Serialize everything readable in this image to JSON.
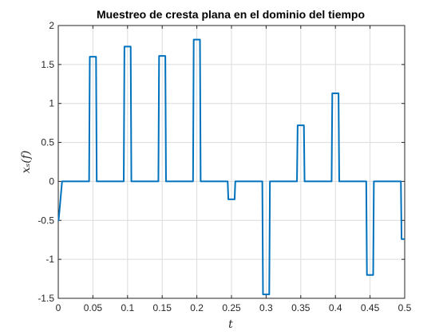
{
  "chart_data": {
    "type": "line",
    "title": "Muestreo de cresta plana en el dominio del tiempo",
    "xlabel": "t",
    "ylabel": "x_s(f)",
    "ylabel_display": "xₛ(f)",
    "xlim": [
      0,
      0.5
    ],
    "ylim": [
      -1.5,
      2
    ],
    "xticks": [
      0,
      0.05,
      0.1,
      0.15,
      0.2,
      0.25,
      0.3,
      0.35,
      0.4,
      0.45,
      0.5
    ],
    "xtick_labels": [
      "0",
      "0.05",
      "0.1",
      "0.15",
      "0.2",
      "0.25",
      "0.3",
      "0.35",
      "0.4",
      "0.45",
      "0.5"
    ],
    "yticks": [
      -1.5,
      -1,
      -0.5,
      0,
      0.5,
      1,
      1.5,
      2
    ],
    "ytick_labels": [
      "-1.5",
      "-1",
      "-0.5",
      "0",
      "0.5",
      "1",
      "1.5",
      "2"
    ],
    "grid": true,
    "series": [
      {
        "color": "#0072bd",
        "x": [
          0,
          0.0005,
          0.0005,
          0.0055,
          0.0055,
          0.0445,
          0.0455,
          0.0495,
          0.0505,
          0.0545,
          0.0555,
          0.0945,
          0.0955,
          0.0995,
          0.1005,
          0.1045,
          0.1055,
          0.1445,
          0.1455,
          0.1495,
          0.1505,
          0.1545,
          0.1555,
          0.1945,
          0.1955,
          0.1995,
          0.2005,
          0.2045,
          0.2055,
          0.2445,
          0.2455,
          0.2495,
          0.2505,
          0.2545,
          0.2555,
          0.2945,
          0.2955,
          0.2995,
          0.3005,
          0.3045,
          0.3055,
          0.3445,
          0.3455,
          0.3495,
          0.3505,
          0.3545,
          0.3555,
          0.3945,
          0.3955,
          0.3995,
          0.4005,
          0.4045,
          0.4055,
          0.4445,
          0.4455,
          0.4495,
          0.4505,
          0.4545,
          0.4555,
          0.4945,
          0.4955,
          0.5
        ],
        "y": [
          -0.5,
          -0.5,
          -0.5,
          0,
          0,
          0,
          1.6,
          1.6,
          1.6,
          1.6,
          0,
          0,
          1.73,
          1.73,
          1.73,
          1.73,
          0,
          0,
          1.61,
          1.61,
          1.61,
          1.61,
          0,
          0,
          1.82,
          1.82,
          1.82,
          1.82,
          0,
          0,
          -0.23,
          -0.23,
          -0.23,
          -0.23,
          0,
          0,
          -1.45,
          -1.45,
          -1.45,
          -1.45,
          0,
          0,
          0.72,
          0.72,
          0.72,
          0.72,
          0,
          0,
          1.13,
          1.13,
          1.13,
          1.13,
          0,
          0,
          -1.2,
          -1.2,
          -1.2,
          -1.2,
          0,
          0,
          -0.74,
          -0.74
        ]
      }
    ]
  }
}
